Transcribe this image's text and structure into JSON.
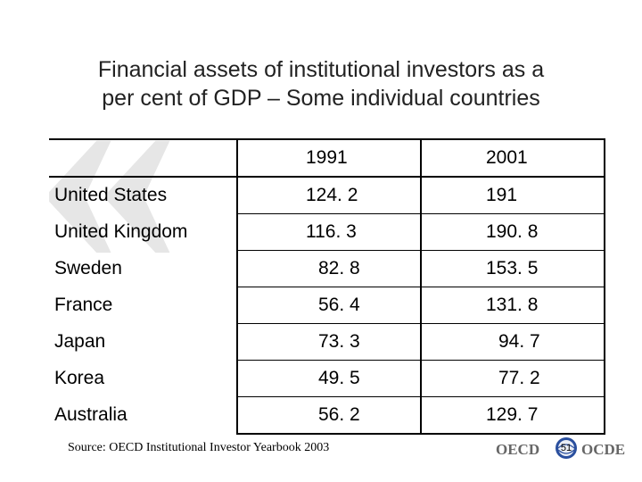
{
  "slide": {
    "title_line1": "Financial assets of institutional investors as a",
    "title_line2": "per cent of GDP – Some individual countries",
    "source": "Source: OECD Institutional Investor Yearbook 2003",
    "page_number": "51",
    "logo_left": "OECD",
    "logo_right": "OCDE"
  },
  "table": {
    "headers": [
      "",
      "1991",
      "2001"
    ],
    "rows": [
      {
        "country": "United States",
        "y1991": "124. 2",
        "y2001": "191"
      },
      {
        "country": "United Kingdom",
        "y1991": "116. 3",
        "y2001": "190. 8"
      },
      {
        "country": "Sweden",
        "y1991": "82. 8",
        "y2001": "153. 5"
      },
      {
        "country": "France",
        "y1991": "56. 4",
        "y2001": "131. 8"
      },
      {
        "country": "Japan",
        "y1991": "73. 3",
        "y2001": "94. 7"
      },
      {
        "country": "Korea",
        "y1991": "49. 5",
        "y2001": "77. 2"
      },
      {
        "country": "Australia",
        "y1991": "56. 2",
        "y2001": "129. 7"
      }
    ]
  },
  "colors": {
    "watermark": "#e6e6e6",
    "logo_grey": "#666666",
    "globe_blue": "#2a4f9e"
  }
}
